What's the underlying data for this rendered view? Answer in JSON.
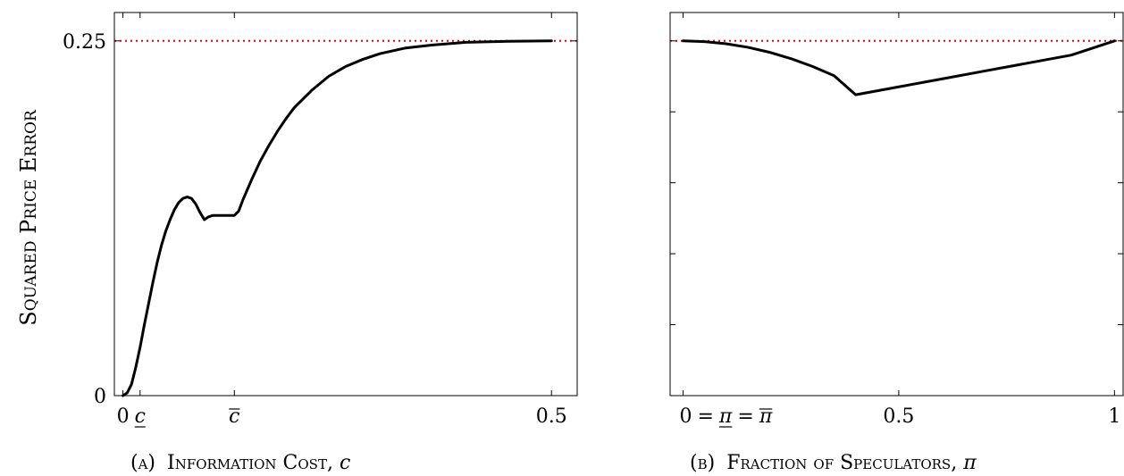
{
  "ylabel": "Squared Price Error",
  "chart_data": [
    {
      "type": "line",
      "caption_prefix": "(a)",
      "caption_main": "Information Cost, ",
      "caption_var": "c",
      "xlim": [
        -0.01,
        0.53
      ],
      "ylim": [
        0,
        0.27
      ],
      "y_ticks": [
        {
          "value": 0,
          "label": "0"
        },
        {
          "value": 0.25,
          "label": "0.25"
        }
      ],
      "x_ticks": [
        {
          "value": 0,
          "label": "0",
          "kind": "plain"
        },
        {
          "value": 0.02,
          "label": "c",
          "kind": "underline"
        },
        {
          "value": 0.13,
          "label": "c",
          "kind": "overline"
        },
        {
          "value": 0.5,
          "label": "0.5",
          "kind": "plain"
        }
      ],
      "reference_line": {
        "y": 0.25,
        "color": "#e00000",
        "style": "dotted"
      },
      "series": [
        {
          "x": [
            0.0,
            0.005,
            0.01,
            0.015,
            0.02,
            0.025,
            0.03,
            0.035,
            0.04,
            0.045,
            0.05,
            0.055,
            0.06,
            0.065,
            0.07,
            0.075,
            0.08,
            0.085,
            0.09,
            0.095,
            0.1,
            0.105,
            0.11,
            0.115,
            0.12,
            0.125,
            0.13,
            0.135,
            0.14,
            0.15,
            0.16,
            0.17,
            0.18,
            0.19,
            0.2,
            0.22,
            0.24,
            0.26,
            0.28,
            0.3,
            0.33,
            0.36,
            0.4,
            0.45,
            0.5
          ],
          "y": [
            0.0,
            0.002,
            0.008,
            0.02,
            0.034,
            0.05,
            0.065,
            0.08,
            0.094,
            0.106,
            0.116,
            0.124,
            0.131,
            0.136,
            0.139,
            0.14,
            0.139,
            0.135,
            0.129,
            0.124,
            0.126,
            0.127,
            0.127,
            0.127,
            0.127,
            0.127,
            0.127,
            0.13,
            0.138,
            0.152,
            0.165,
            0.176,
            0.186,
            0.195,
            0.203,
            0.215,
            0.225,
            0.232,
            0.237,
            0.241,
            0.245,
            0.247,
            0.249,
            0.2497,
            0.25
          ]
        }
      ]
    },
    {
      "type": "line",
      "caption_prefix": "(b)",
      "caption_main": "Fraction of Speculators, ",
      "caption_var": "π",
      "xlim": [
        -0.03,
        1.02
      ],
      "ylim": [
        0,
        0.27
      ],
      "y_ticks": [
        {
          "value": 0,
          "label": ""
        },
        {
          "value": 0.05,
          "label": ""
        },
        {
          "value": 0.1,
          "label": ""
        },
        {
          "value": 0.15,
          "label": ""
        },
        {
          "value": 0.2,
          "label": ""
        },
        {
          "value": 0.25,
          "label": ""
        }
      ],
      "x_ticks": [
        {
          "value": 0,
          "label": "0 = π = π",
          "kind": "pi"
        },
        {
          "value": 0.5,
          "label": "0.5",
          "kind": "plain"
        },
        {
          "value": 1,
          "label": "1",
          "kind": "plain"
        }
      ],
      "reference_line": {
        "y": 0.25,
        "color": "#e00000",
        "style": "dotted"
      },
      "series": [
        {
          "x": [
            0.0,
            0.05,
            0.1,
            0.15,
            0.2,
            0.25,
            0.3,
            0.35,
            0.4,
            0.5,
            0.6,
            0.7,
            0.8,
            0.9,
            1.0
          ],
          "y": [
            0.25,
            0.2495,
            0.248,
            0.2455,
            0.242,
            0.2375,
            0.232,
            0.2255,
            0.212,
            0.2176,
            0.2232,
            0.2288,
            0.2344,
            0.24,
            0.25
          ]
        }
      ]
    }
  ]
}
